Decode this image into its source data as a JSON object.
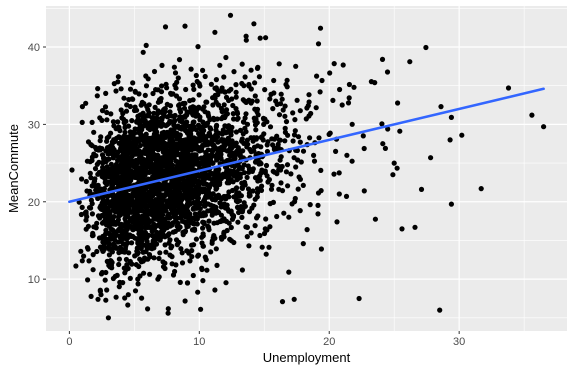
{
  "chart_data": {
    "type": "scatter",
    "xlabel": "Unemployment",
    "ylabel": "MeanCommute",
    "title": "",
    "xlim": [
      -1.8,
      38.3
    ],
    "ylim": [
      3.3,
      45.3
    ],
    "xticks": [
      0,
      10,
      20,
      30
    ],
    "yticks": [
      10,
      20,
      30,
      40
    ],
    "grid": true,
    "trend_line": {
      "method": "lm",
      "x": [
        0,
        36.5
      ],
      "y": [
        20.0,
        34.6
      ]
    },
    "distribution_summary": {
      "n_points": 3000,
      "x_center": 7.5,
      "y_center": 23.5,
      "note_hint": "dense cloud 3-12 x 15-32"
    },
    "outliers": [
      [
        26.2,
        38.1
      ],
      [
        28.6,
        32.3
      ],
      [
        29.3,
        28.0
      ],
      [
        30.2,
        28.6
      ],
      [
        31.7,
        21.7
      ],
      [
        28.5,
        6.0
      ],
      [
        27.1,
        21.6
      ],
      [
        29.4,
        19.7
      ],
      [
        35.6,
        31.2
      ],
      [
        36.5,
        29.7
      ],
      [
        33.8,
        34.7
      ],
      [
        24.1,
        38.4
      ],
      [
        24.5,
        29.4
      ],
      [
        25.0,
        25.0
      ],
      [
        25.6,
        16.5
      ],
      [
        22.3,
        7.5
      ],
      [
        21.0,
        32.5
      ],
      [
        23.5,
        35.4
      ],
      [
        22.7,
        21.4
      ],
      [
        20.6,
        17.4
      ],
      [
        18.0,
        14.6
      ],
      [
        19.4,
        13.9
      ],
      [
        17.3,
        7.4
      ],
      [
        16.4,
        7.1
      ],
      [
        15.1,
        41.2
      ],
      [
        12.4,
        44.1
      ],
      [
        13.6,
        41.4
      ],
      [
        14.2,
        43.0
      ],
      [
        11.2,
        41.9
      ],
      [
        7.4,
        42.6
      ],
      [
        8.9,
        42.7
      ],
      [
        3.0,
        5.0
      ],
      [
        7.6,
        5.6
      ],
      [
        10.1,
        6.1
      ],
      [
        11.2,
        8.6
      ],
      [
        0.2,
        24.1
      ],
      [
        1.0,
        32.3
      ],
      [
        0.5,
        11.7
      ],
      [
        1.4,
        9.9
      ],
      [
        2.2,
        7.4
      ],
      [
        19.3,
        34.2
      ],
      [
        27.8,
        25.7
      ],
      [
        24.9,
        23.5
      ],
      [
        26.6,
        16.7
      ],
      [
        29.4,
        30.9
      ]
    ]
  }
}
